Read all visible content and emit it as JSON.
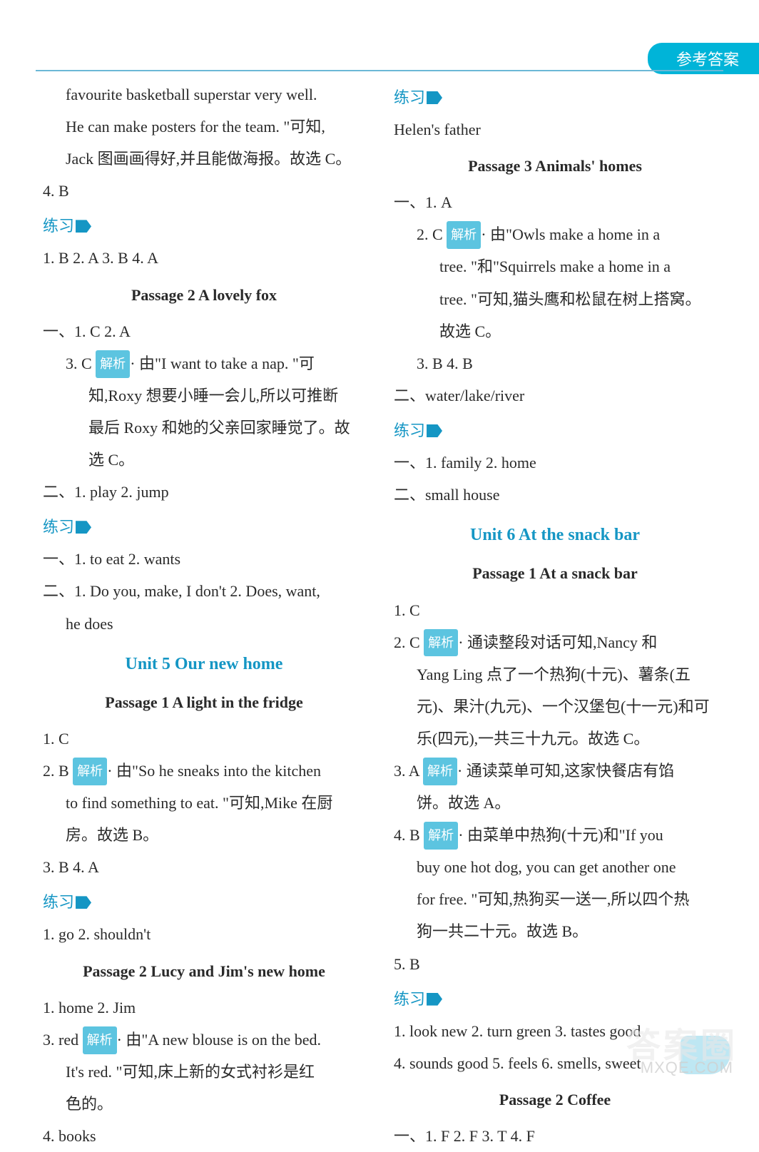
{
  "header": {
    "tab": "参考答案"
  },
  "left": {
    "l1": "favourite basketball superstar very well.",
    "l2": "He can make posters for the team. \"可知,",
    "l3": "Jack 图画画得好,并且能做海报。故选 C。",
    "q4": "4. B",
    "practice1": "练习",
    "row1": "1. B  2. A  3. B  4. A",
    "passage2": "Passage 2   A lovely fox",
    "p2_r1": "一、1. C   2. A",
    "p2_q3a": "3. C   ",
    "p2_tag": "解析",
    "p2_q3b": "· 由\"I want to take a nap. \"可",
    "p2_q3c": "知,Roxy 想要小睡一会儿,所以可推断",
    "p2_q3d": "最后 Roxy 和她的父亲回家睡觉了。故",
    "p2_q3e": "选 C。",
    "p2_r2": "二、1. play   2. jump",
    "practice2": "练习",
    "pr2_r1": "一、1. to eat   2. wants",
    "pr2_r2a": "二、1. Do you, make, I don't   2. Does, want,",
    "pr2_r2b": "he does",
    "unit5": "Unit 5   Our new home",
    "u5p1": "Passage 1   A light in the fridge",
    "u5p1_q1": "1. C",
    "u5p1_q2a": "2. B   ",
    "u5p1_tag": "解析",
    "u5p1_q2b": "· 由\"So he sneaks into the kitchen",
    "u5p1_q2c": "to find something to eat. \"可知,Mike 在厨",
    "u5p1_q2d": "房。故选 B。",
    "u5p1_q34": "3. B   4. A",
    "practice3": "练习",
    "pr3_r1": "1. go   2. shouldn't",
    "u5p2": "Passage 2   Lucy and Jim's new home",
    "u5p2_r1": "1. home   2. Jim",
    "u5p2_q3a": "3. red   ",
    "u5p2_tag": "解析",
    "u5p2_q3b": "· 由\"A new blouse is on the bed.",
    "u5p2_q3c": "It's red. \"可知,床上新的女式衬衫是红",
    "u5p2_q3d": "色的。",
    "u5p2_q4": "4. books"
  },
  "right": {
    "practice1": "练习",
    "r1": "Helen's father",
    "passage3": "Passage 3   Animals' homes",
    "p3_r1": "一、1. A",
    "p3_q2a": "2. C   ",
    "p3_tag": "解析",
    "p3_q2b": "· 由\"Owls make a home in a",
    "p3_q2c": "tree. \"和\"Squirrels make a home in a",
    "p3_q2d": "tree. \"可知,猫头鹰和松鼠在树上搭窝。",
    "p3_q2e": "故选 C。",
    "p3_q34": "3. B   4. B",
    "p3_r2": "二、water/lake/river",
    "practice2": "练习",
    "pr2_r1": "一、1. family   2. home",
    "pr2_r2": "二、small house",
    "unit6": "Unit 6   At the snack bar",
    "u6p1": "Passage 1   At a snack bar",
    "u6p1_q1": "1. C",
    "u6p1_q2a": "2. C   ",
    "u6p1_tag2": "解析",
    "u6p1_q2b": "· 通读整段对话可知,Nancy 和",
    "u6p1_q2c": "Yang Ling 点了一个热狗(十元)、薯条(五",
    "u6p1_q2d": "元)、果汁(九元)、一个汉堡包(十一元)和可",
    "u6p1_q2e": "乐(四元),一共三十九元。故选 C。",
    "u6p1_q3a": "3. A   ",
    "u6p1_tag3": "解析",
    "u6p1_q3b": "· 通读菜单可知,这家快餐店有馅",
    "u6p1_q3c": "饼。故选 A。",
    "u6p1_q4a": "4. B   ",
    "u6p1_tag4": "解析",
    "u6p1_q4b": "· 由菜单中热狗(十元)和\"If you",
    "u6p1_q4c": "buy one hot dog, you can get another one",
    "u6p1_q4d": "for free. \"可知,热狗买一送一,所以四个热",
    "u6p1_q4e": "狗一共二十元。故选 B。",
    "u6p1_q5": "5. B",
    "practice3": "练习",
    "pr3_r1": "1. look new   2. turn green   3. tastes good",
    "pr3_r2": "4. sounds good   5. feels   6. smells, sweet",
    "u6p2": "Passage 2   Coffee",
    "u6p2_r1": "一、1. F   2. F   3. T   4. F"
  },
  "watermarks": {
    "w1": "答案圈",
    "w2": "MXQE.COM"
  }
}
